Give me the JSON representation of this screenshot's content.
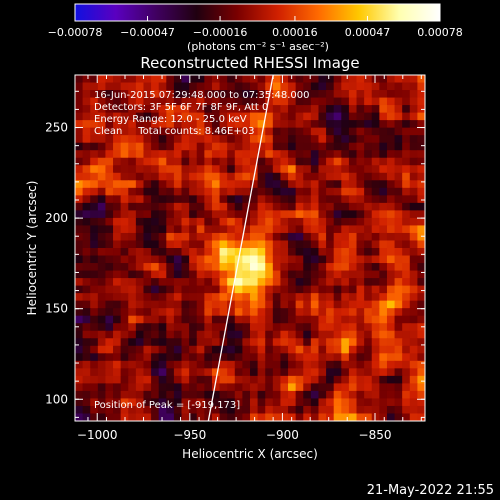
{
  "chart_data": {
    "type": "heatmap",
    "title": "Reconstructed RHESSI Image",
    "xlabel": "Heliocentric X (arcsec)",
    "ylabel": "Heliocentric Y (arcsec)",
    "xlim": [
      -1012,
      -823
    ],
    "ylim": [
      88,
      279
    ],
    "xticks": [
      -1000,
      -950,
      -900,
      -850
    ],
    "xtick_labels": [
      "−1000",
      "−950",
      "−900",
      "−850"
    ],
    "yticks": [
      100,
      150,
      200,
      250
    ],
    "ytick_labels": [
      "100",
      "150",
      "200",
      "250"
    ],
    "colorbar": {
      "min": -0.00078,
      "max": 0.00078,
      "ticks": [
        -0.00078,
        -0.00047,
        -0.00016,
        0.00016,
        0.00047,
        0.00078
      ],
      "tick_labels": [
        "−0.00078",
        "−0.00047",
        "−0.00016",
        "0.00016",
        "0.00047",
        "0.00078"
      ],
      "label": "(photons cm⁻² s⁻¹ asec⁻²)",
      "colors": [
        "#1010e0",
        "#5a00c0",
        "#400060",
        "#200010",
        "#7a0000",
        "#d02000",
        "#ff6a00",
        "#ffc800",
        "#ffffb0",
        "#ffffff"
      ]
    },
    "annotations": [
      "16-Jun-2015 07:29:48.000 to 07:35:48.000",
      "Detectors: 3F 5F 6F 7F 8F 9F, Att 0",
      "Energy Range: 12.0 - 25.0 keV",
      "Clean     Total counts: 8.46E+03"
    ],
    "peak_text": "Position of Peak = [-919,173]",
    "peak": [
      -919,
      173
    ],
    "limb_line": [
      [
        -940,
        88
      ],
      [
        -905,
        279
      ]
    ],
    "footer": "21-May-2022 21:55"
  }
}
